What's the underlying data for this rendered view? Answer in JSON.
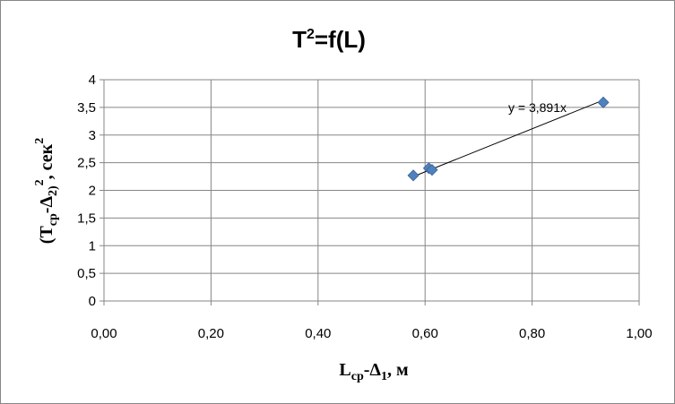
{
  "chart_data": {
    "type": "scatter",
    "title": {
      "base": "T",
      "sup": "2",
      "rest": "=f(L)"
    },
    "xlabel": {
      "p1": "L",
      "sub1": "ср",
      "p2": "-Δ",
      "sub2": "1",
      "p3": ", м"
    },
    "ylabel": {
      "p1": "(T",
      "sub1": "ср",
      "p2": "-Δ",
      "sub2": "2)",
      "sup1": "2",
      "p3": ", сек",
      "sup2": "2"
    },
    "xlim": [
      0,
      1
    ],
    "ylim": [
      0,
      4
    ],
    "xticks": [
      "0,00",
      "0,20",
      "0,40",
      "0,60",
      "0,80",
      "1,00"
    ],
    "yticks": [
      "0",
      "0,5",
      "1",
      "1,5",
      "2",
      "2,5",
      "3",
      "3,5",
      "4"
    ],
    "grid": true,
    "legend": "none",
    "marker_color": "#4F81BD",
    "points": [
      {
        "x": 0.578,
        "y": 2.27
      },
      {
        "x": 0.607,
        "y": 2.4
      },
      {
        "x": 0.613,
        "y": 2.37
      },
      {
        "x": 0.933,
        "y": 3.59
      }
    ],
    "trendline": {
      "label": "y = 3,891x",
      "from_x": 0.578,
      "to_x": 0.933,
      "slope": 3.891
    }
  }
}
